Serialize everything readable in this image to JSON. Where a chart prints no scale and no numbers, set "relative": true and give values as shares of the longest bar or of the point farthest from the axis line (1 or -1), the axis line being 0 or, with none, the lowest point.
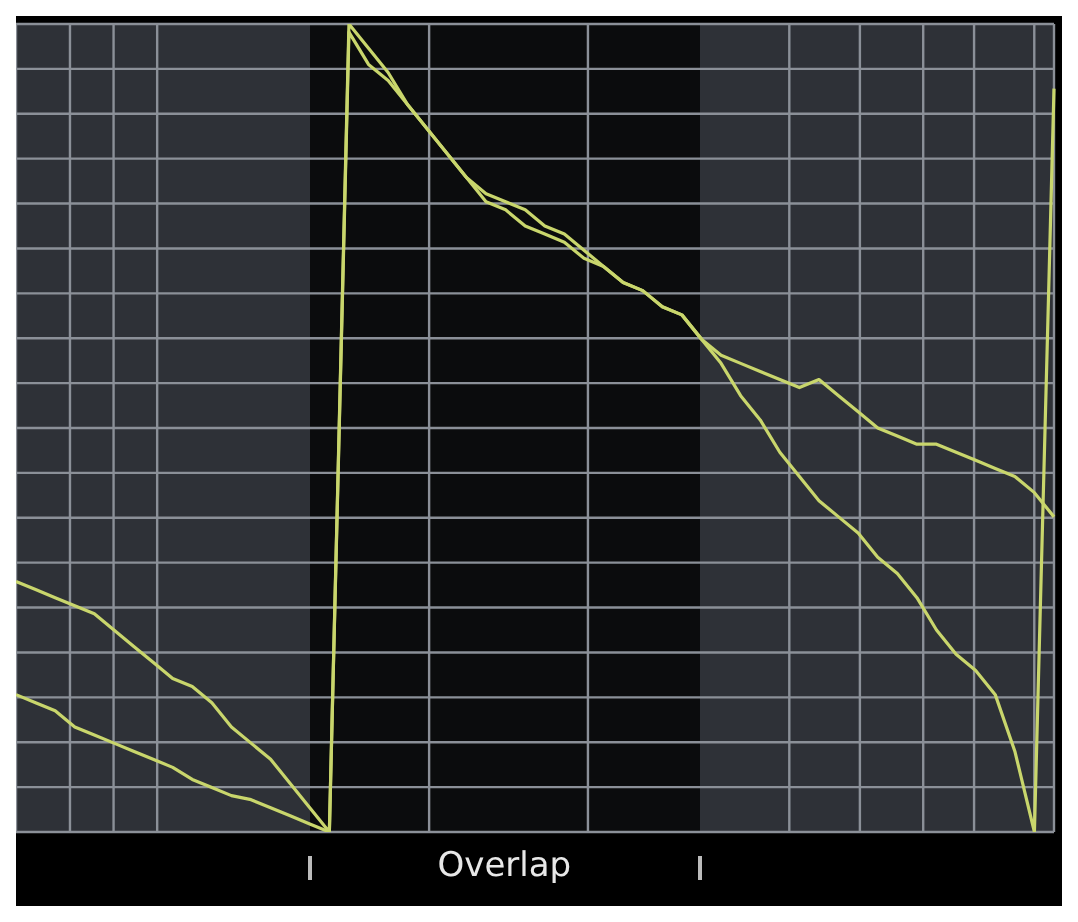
{
  "chart_data": {
    "type": "line",
    "relative": true,
    "grid": true,
    "categories": [
      null,
      null,
      null,
      null,
      null,
      null,
      null,
      null,
      null,
      null,
      null,
      null,
      null,
      null,
      null,
      null,
      null,
      null,
      null,
      null,
      null,
      null,
      null,
      null,
      null,
      null,
      null,
      null,
      null,
      null,
      null,
      null,
      null,
      null,
      null,
      null,
      null,
      null,
      null,
      null,
      null,
      null,
      null,
      null,
      null,
      null,
      null,
      null,
      null,
      null,
      null,
      null,
      null,
      null
    ],
    "annotations": [
      "Overlap"
    ],
    "series": [
      {
        "color": "#c9d66c",
        "values": [
          0.31,
          0.3,
          0.29,
          0.28,
          0.27,
          0.25,
          0.23,
          0.21,
          0.19,
          0.18,
          0.16,
          0.13,
          0.11,
          0.09,
          0.06,
          0.03,
          0,
          0.99,
          0.95,
          0.93,
          0.9,
          0.87,
          0.84,
          0.81,
          0.78,
          0.77,
          0.75,
          0.74,
          0.73,
          0.71,
          0.7,
          0.68,
          0.67,
          0.65,
          0.64,
          0.61,
          0.59,
          0.58,
          0.57,
          0.56,
          0.55,
          0.56,
          0.54,
          0.52,
          0.5,
          0.49,
          0.48,
          0.48,
          0.47,
          0.46,
          0.45,
          0.44,
          0.42,
          0.39
        ]
      },
      {
        "color": "#c9d66c",
        "values": [
          0.17,
          0.16,
          0.15,
          0.13,
          0.12,
          0.11,
          0.1,
          0.09,
          0.08,
          0.065,
          0.055,
          0.045,
          0.04,
          0.03,
          0.02,
          0.01,
          0,
          1,
          0.97,
          0.94,
          0.9,
          0.87,
          0.84,
          0.81,
          0.79,
          0.78,
          0.77,
          0.75,
          0.74,
          0.72,
          0.7,
          0.68,
          0.67,
          0.65,
          0.64,
          0.61,
          0.58,
          0.54,
          0.51,
          0.47,
          0.44,
          0.41,
          0.39,
          0.37,
          0.34,
          0.32,
          0.29,
          0.25,
          0.22,
          0.2,
          0.17,
          0.1,
          0,
          0.92
        ]
      }
    ]
  }
}
